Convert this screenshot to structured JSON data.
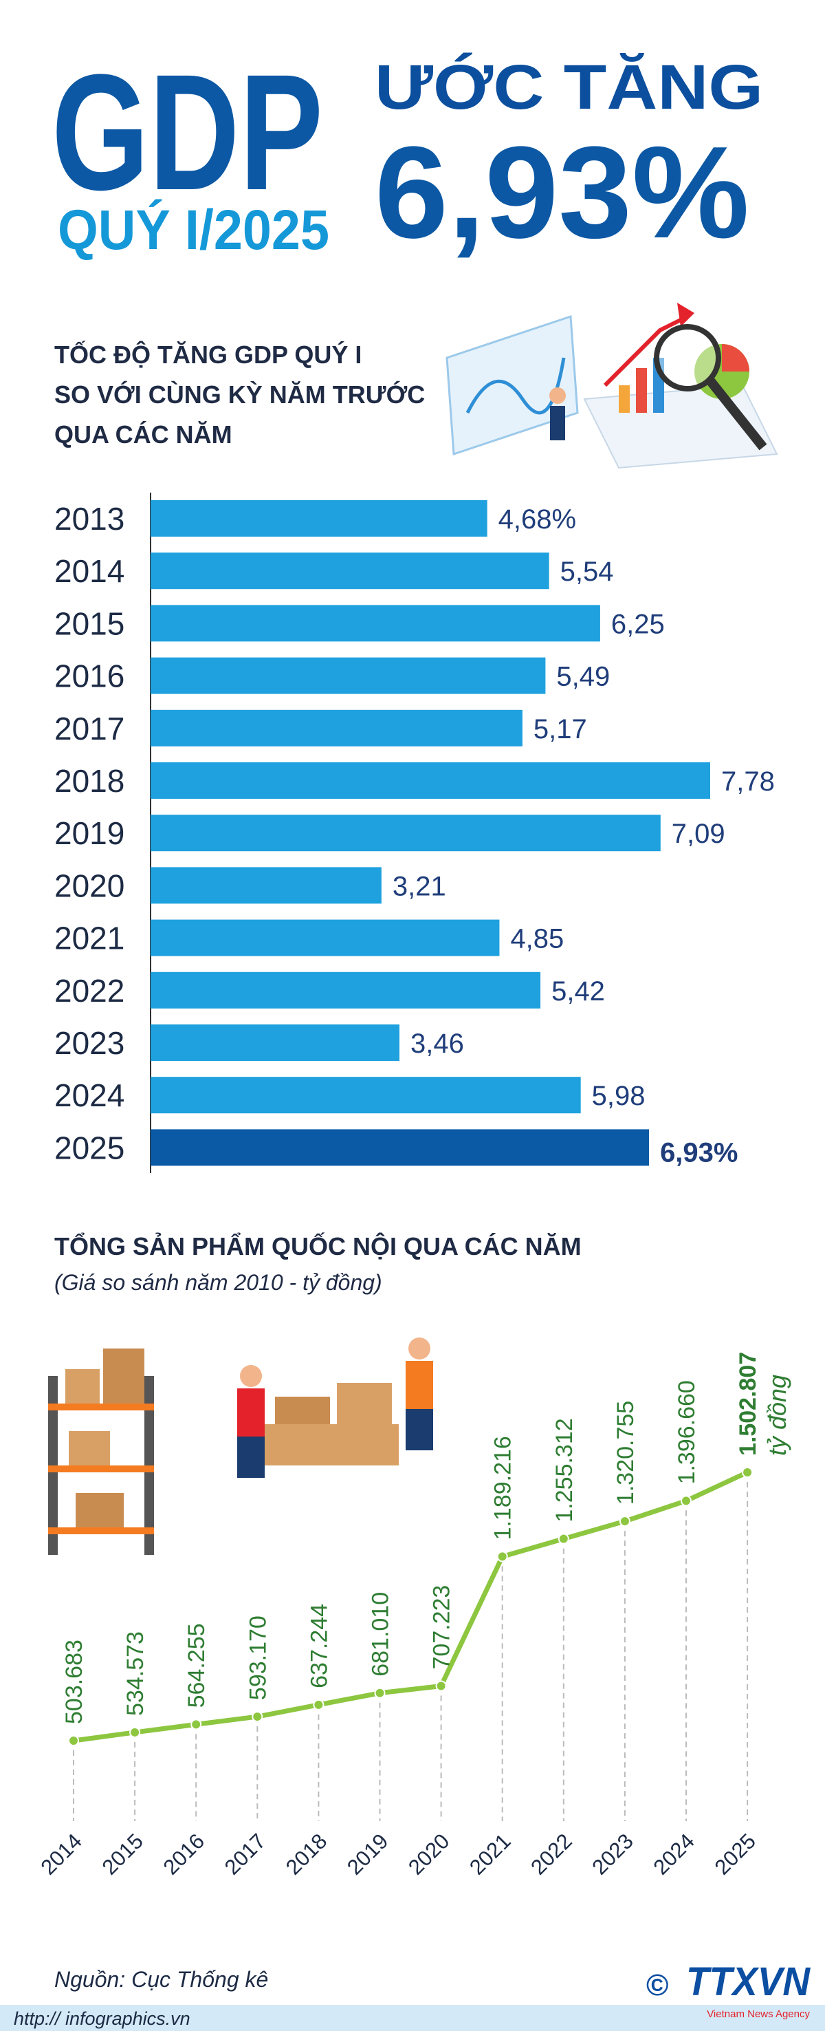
{
  "header": {
    "title": "GDP",
    "subtitle": "QUÝ I/2025",
    "headline": "ƯỚC TĂNG",
    "figure": "6,93%"
  },
  "chart_data": [
    {
      "type": "bar",
      "title": [
        "TỐC ĐỘ TĂNG GDP QUÝ I",
        "SO VỚI CÙNG KỲ NĂM TRƯỚC",
        "QUA CÁC NĂM"
      ],
      "categories": [
        "2013",
        "2014",
        "2015",
        "2016",
        "2017",
        "2018",
        "2019",
        "2020",
        "2021",
        "2022",
        "2023",
        "2024",
        "2025"
      ],
      "values": [
        4.68,
        5.54,
        6.25,
        5.49,
        5.17,
        7.78,
        7.09,
        3.21,
        4.85,
        5.42,
        3.46,
        5.98,
        6.93
      ],
      "value_labels": [
        "4,68%",
        "5,54",
        "6,25",
        "5,49",
        "5,17",
        "7,78",
        "7,09",
        "3,21",
        "4,85",
        "5,42",
        "3,46",
        "5,98",
        "6,93%"
      ],
      "colors": [
        "#1ea1de",
        "#1ea1de",
        "#1ea1de",
        "#1ea1de",
        "#1ea1de",
        "#1ea1de",
        "#1ea1de",
        "#1ea1de",
        "#1ea1de",
        "#1ea1de",
        "#1ea1de",
        "#1ea1de",
        "#0b5aa6"
      ]
    },
    {
      "type": "line",
      "title": "TỔNG SẢN PHẨM QUỐC NỘI QUA CÁC NĂM",
      "subtitle": "(Giá so sánh năm 2010 - tỷ đồng)",
      "categories": [
        "2014",
        "2015",
        "2016",
        "2017",
        "2018",
        "2019",
        "2020",
        "2021",
        "2022",
        "2023",
        "2024",
        "2025"
      ],
      "values": [
        503683,
        534573,
        564255,
        593170,
        637244,
        681010,
        707223,
        1189216,
        1255312,
        1320755,
        1396660,
        1502807
      ],
      "value_labels": [
        "503.683",
        "534.573",
        "564.255",
        "593.170",
        "637.244",
        "681.010",
        "707.223",
        "1.189.216",
        "1.255.312",
        "1.320.755",
        "1.396.660",
        "1.502.807"
      ],
      "annotation": "tỷ đồng",
      "color": "#8dc63f"
    }
  ],
  "footer": {
    "source": "Nguồn: Cục Thống kê",
    "url": "http:// infographics.vn",
    "copyright": "©",
    "logo": "TTXVN",
    "logo_caption": "Vietnam News Agency"
  }
}
